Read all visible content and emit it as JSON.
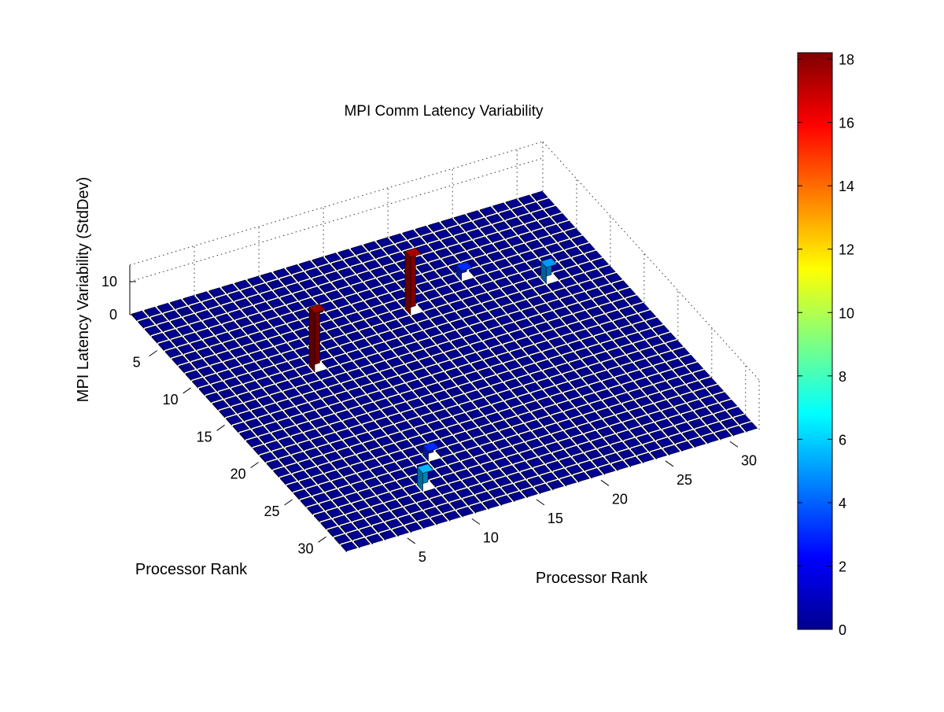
{
  "chart_data": {
    "type": "bar3",
    "title": "MPI Comm Latency Variability",
    "x_label": "Processor Rank",
    "y_label": "Processor Rank",
    "z_label": "MPI Latency Variability (StdDev)",
    "x_ticks": [
      "5",
      "10",
      "15",
      "20",
      "25",
      "30"
    ],
    "y_ticks": [
      "5",
      "10",
      "15",
      "20",
      "25",
      "30"
    ],
    "z_ticks": [
      "0",
      "10"
    ],
    "xlim": [
      1,
      32
    ],
    "ylim": [
      1,
      32
    ],
    "zlim": [
      0,
      15
    ],
    "grid_size": 32,
    "baseline_value": 0.3,
    "colormap": "jet",
    "colorbar": {
      "ticks": [
        "0",
        "2",
        "4",
        "6",
        "8",
        "10",
        "12",
        "14",
        "16",
        "18"
      ],
      "range": [
        0,
        18.2
      ],
      "placement": "right"
    },
    "highlighted_bars": [
      {
        "x": 9,
        "y": 18,
        "value": 17.5
      },
      {
        "x": 12,
        "y": 9,
        "value": 17.8
      },
      {
        "x": 28,
        "y": 9,
        "value": 5.5
      },
      {
        "x": 10,
        "y": 28,
        "value": 5.0
      },
      {
        "x": 7,
        "y": 23,
        "value": 3.0
      },
      {
        "x": 25,
        "y": 11,
        "value": 3.0
      }
    ],
    "grid": true
  }
}
